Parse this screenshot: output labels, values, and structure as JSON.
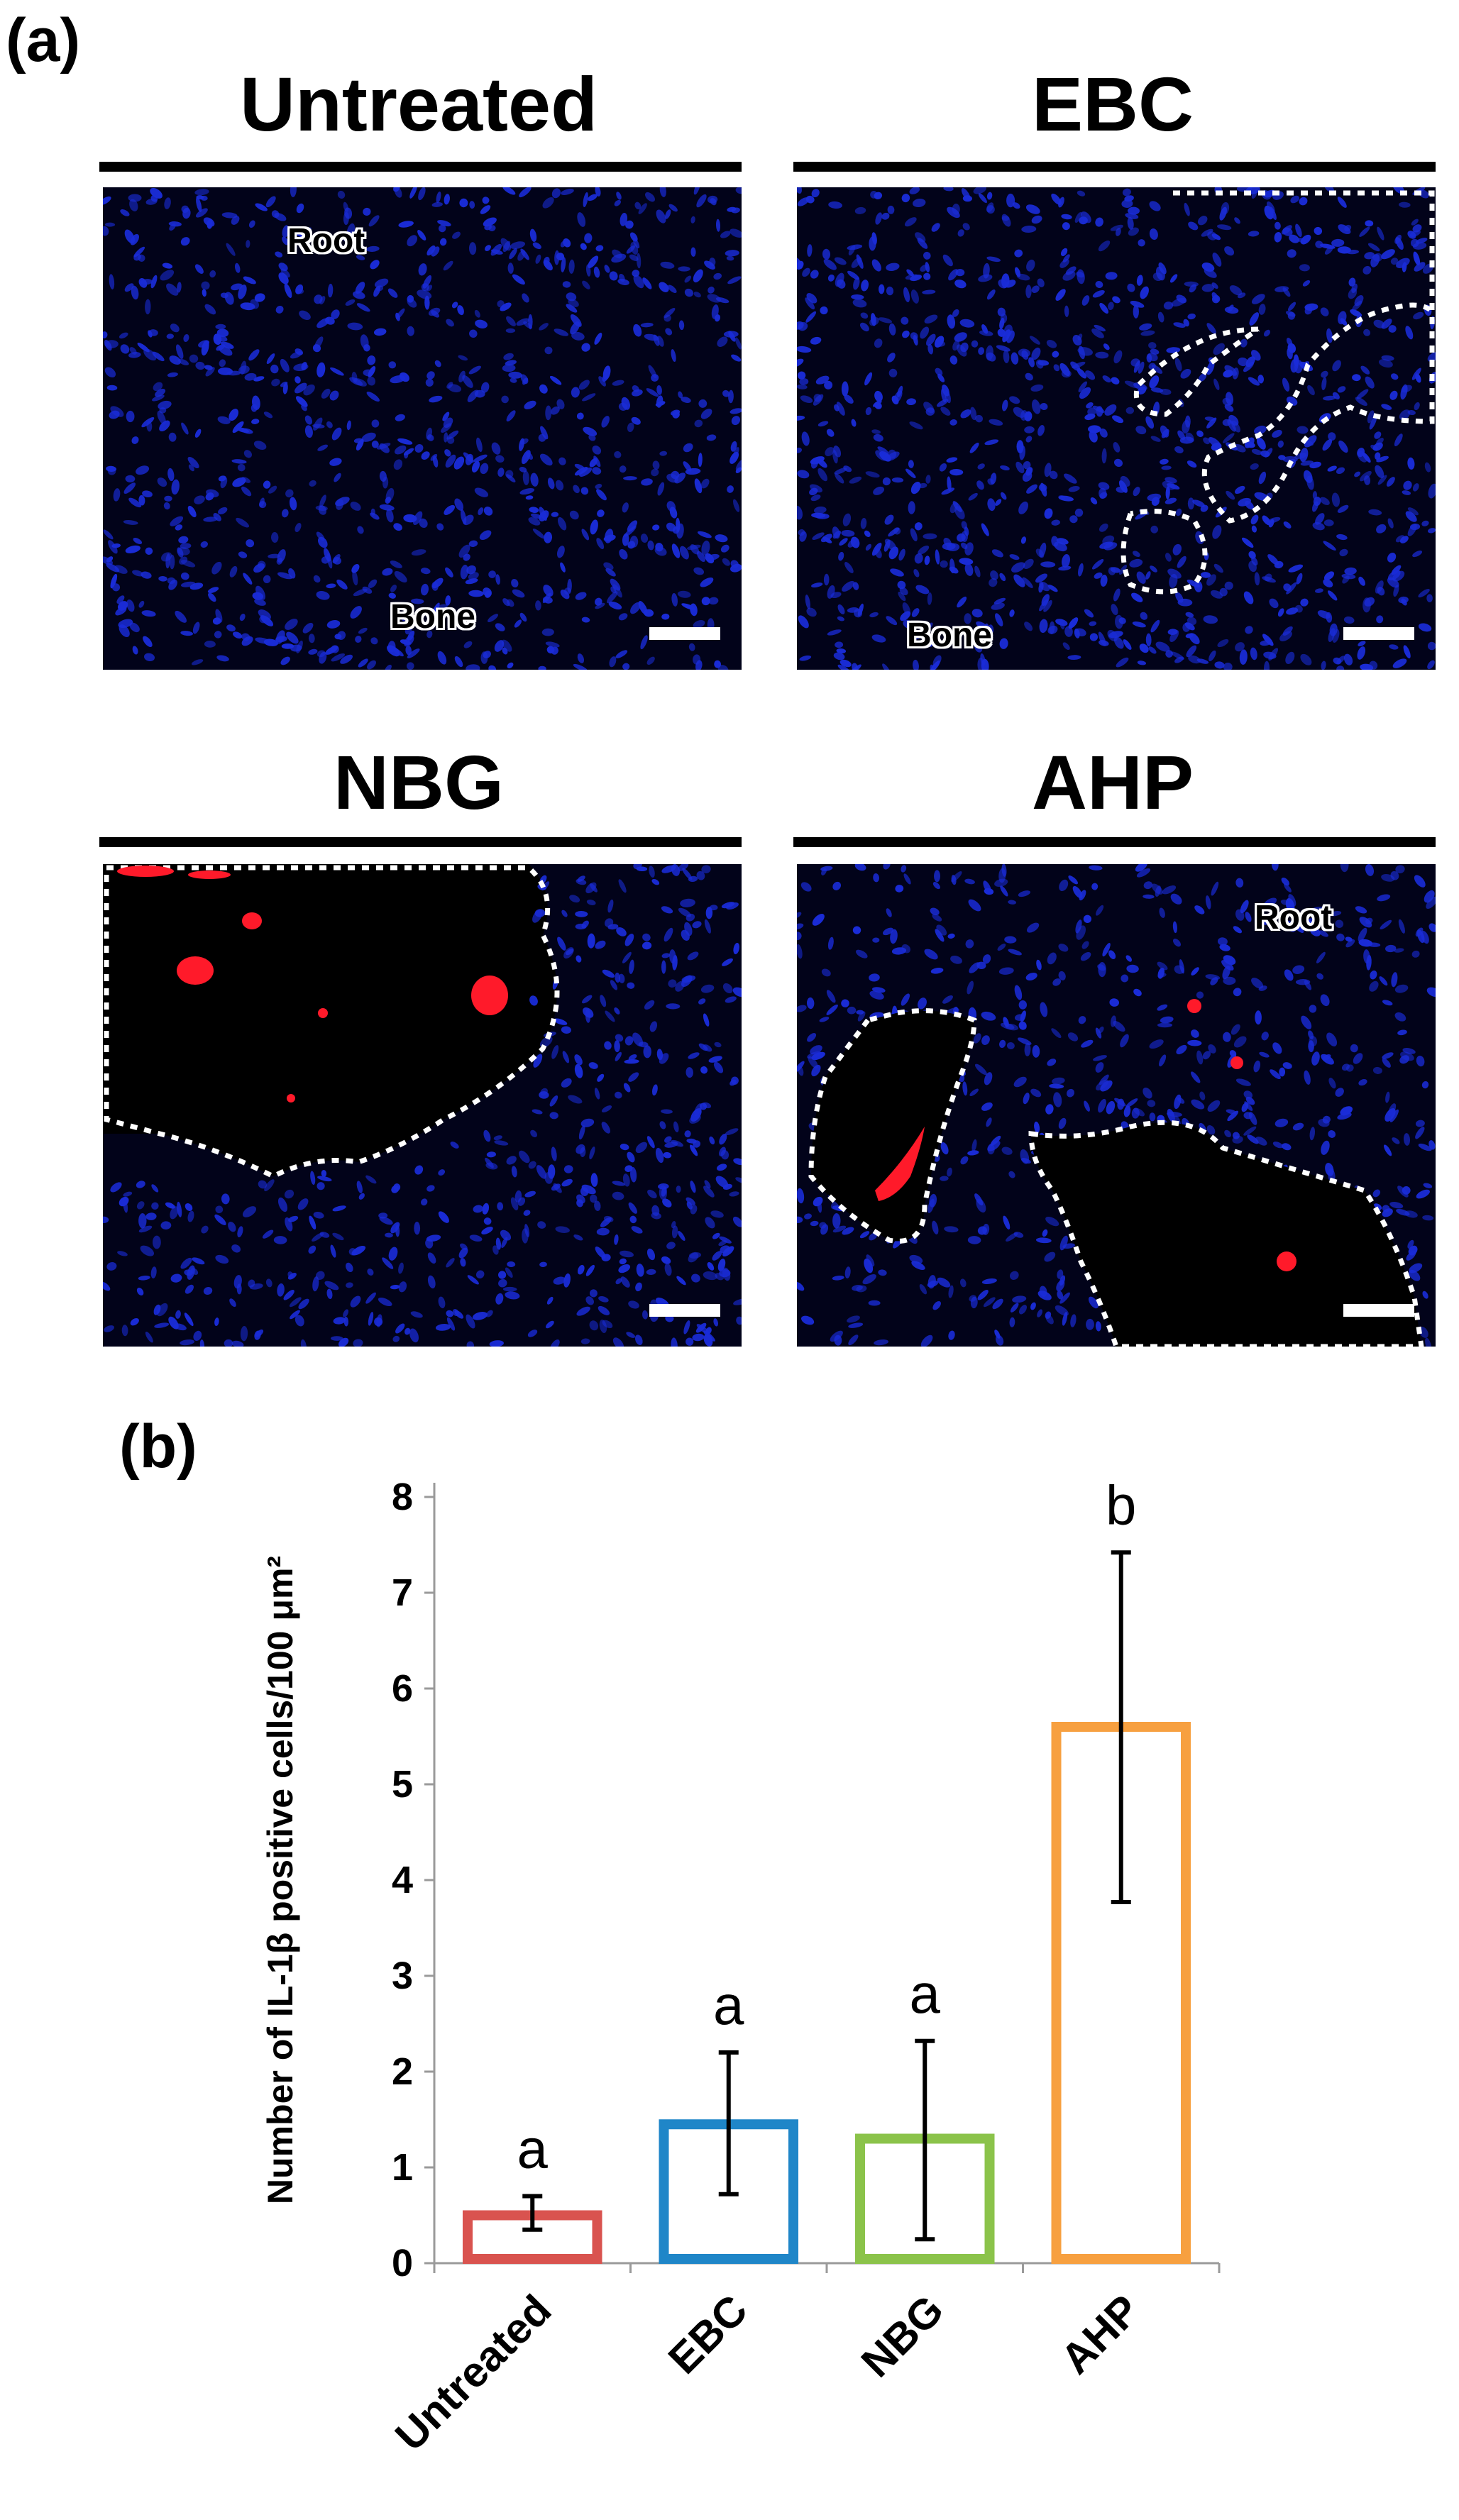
{
  "figure": {
    "panel_a_label": "(a)",
    "panel_b_label": "(b)",
    "colors": {
      "nuclei": "#1a2cd8",
      "stain": "#ff1a2a",
      "background": "#02031a",
      "outline": "#ffffff"
    }
  },
  "micrographs": [
    {
      "title": "Untreated",
      "labels": [
        "Root",
        "Bone"
      ]
    },
    {
      "title": "EBC",
      "labels": [
        "Bone"
      ]
    },
    {
      "title": "NBG",
      "labels": []
    },
    {
      "title": "AHP",
      "labels": [
        "Root"
      ]
    }
  ],
  "chart_data": {
    "type": "bar",
    "categories": [
      "Untreated",
      "EBC",
      "NBG",
      "AHP"
    ],
    "values": [
      0.5,
      1.45,
      1.3,
      5.6
    ],
    "errors_low": [
      0.35,
      0.72,
      0.25,
      3.77
    ],
    "errors_high": [
      0.7,
      2.2,
      2.32,
      7.42
    ],
    "significance_letters": [
      "a",
      "a",
      "a",
      "b"
    ],
    "bar_colors": [
      "#d9534f",
      "#1f86c8",
      "#8bc34a",
      "#f7a040"
    ],
    "ylabel": "Number of IL-1β positive cells/100 μm²",
    "xlabel": "",
    "ylim": [
      0,
      8
    ],
    "yticks": [
      0,
      1,
      2,
      3,
      4,
      5,
      6,
      7,
      8
    ],
    "grid": false,
    "legend": "none"
  }
}
